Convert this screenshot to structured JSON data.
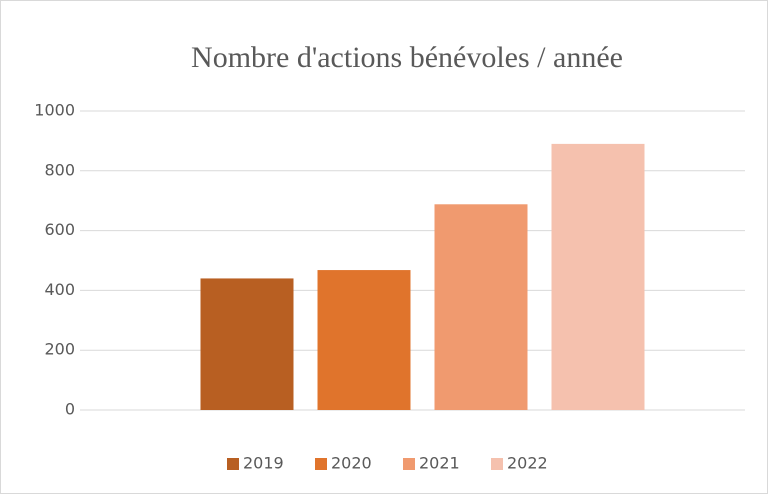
{
  "chart_data": {
    "type": "bar",
    "title": "Nombre d'actions bénévoles / année",
    "categories": [
      null
    ],
    "series": [
      {
        "name": "2019",
        "color": "#b85f22",
        "values": [
          440
        ]
      },
      {
        "name": "2020",
        "color": "#e0742c",
        "values": [
          468
        ]
      },
      {
        "name": "2021",
        "color": "#f09a6f",
        "values": [
          688
        ]
      },
      {
        "name": "2022",
        "color": "#f5c1ae",
        "values": [
          890
        ]
      }
    ],
    "ylim": [
      0,
      1000
    ],
    "yticks": [
      0,
      200,
      400,
      600,
      800,
      1000
    ],
    "grid": true,
    "legend": "bottom"
  }
}
